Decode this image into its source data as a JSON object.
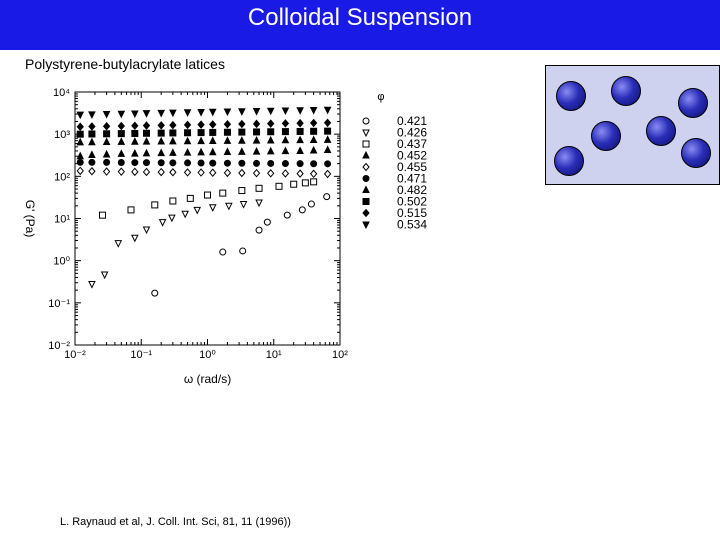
{
  "header": {
    "title": "Colloidal Suspension"
  },
  "subtitle": "Polystyrene-butylacrylate latices",
  "citation": "L. Raynaud et al, J. Coll. Int. Sci, 81, 11 (1996))",
  "colors": {
    "title_bar": "#1a1ae6",
    "title_text": "#ffffff",
    "particle_box": "#cfd2ee",
    "particle": "#2a2eb8"
  },
  "chart_data": {
    "type": "scatter",
    "xlabel": "ω (rad/s)",
    "ylabel": "G' (Pa)",
    "x_scale": "log",
    "y_scale": "log",
    "xlim": [
      0.01,
      100
    ],
    "ylim": [
      0.01,
      10000
    ],
    "x_tick_labels": [
      "10⁻²",
      "10⁻¹",
      "10⁰",
      "10¹",
      "10²"
    ],
    "y_tick_labels": [
      "10⁴",
      "10³",
      "10²",
      "10¹",
      "10⁰",
      "10⁻¹",
      "10⁻²"
    ],
    "legend_title": "φ",
    "legend_position": "right",
    "grid": false,
    "series": [
      {
        "name": "0.421",
        "marker": "circle-open",
        "x": [
          0.16,
          1.7,
          3.4,
          6.0,
          8.0,
          16,
          27,
          37,
          63
        ],
        "y": [
          0.17,
          1.6,
          1.7,
          5.3,
          8.2,
          12,
          16,
          22,
          33
        ]
      },
      {
        "name": "0.426",
        "marker": "triangle-down-open",
        "x": [
          0.018,
          0.028,
          0.045,
          0.08,
          0.12,
          0.21,
          0.29,
          0.46,
          0.7,
          1.2,
          2.1,
          3.5,
          6.0
        ],
        "y": [
          0.28,
          0.47,
          2.6,
          3.5,
          5.5,
          8.2,
          10.5,
          13,
          16,
          18.5,
          20,
          22,
          24
        ]
      },
      {
        "name": "0.437",
        "marker": "square-open",
        "x": [
          0.026,
          0.07,
          0.16,
          0.3,
          0.55,
          1.0,
          1.7,
          3.3,
          6.0,
          12,
          20,
          30,
          40
        ],
        "y": [
          12,
          16,
          21,
          26,
          30,
          36,
          40,
          46,
          52,
          58,
          65,
          70,
          74
        ]
      },
      {
        "name": "0.452",
        "marker": "triangle-up-filled",
        "x": [
          0.012,
          0.018,
          0.03,
          0.05,
          0.08,
          0.12,
          0.2,
          0.3,
          0.5,
          0.8,
          1.2,
          2.0,
          3.3,
          5.5,
          9,
          15,
          25,
          40,
          65
        ],
        "y": [
          300,
          320,
          330,
          340,
          345,
          350,
          355,
          360,
          365,
          370,
          372,
          378,
          380,
          385,
          390,
          395,
          400,
          410,
          420
        ]
      },
      {
        "name": "0.455",
        "marker": "diamond-open",
        "x": [
          0.012,
          0.018,
          0.03,
          0.05,
          0.08,
          0.12,
          0.2,
          0.3,
          0.5,
          0.8,
          1.2,
          2.0,
          3.3,
          5.5,
          9,
          15,
          25,
          40,
          65
        ],
        "y": [
          135,
          132,
          130,
          129,
          128,
          127,
          126,
          125,
          124,
          123,
          122,
          121,
          120,
          119,
          118,
          117,
          116,
          115,
          114
        ]
      },
      {
        "name": "0.471",
        "marker": "circle-filled",
        "x": [
          0.012,
          0.018,
          0.03,
          0.05,
          0.08,
          0.12,
          0.2,
          0.3,
          0.5,
          0.8,
          1.2,
          2.0,
          3.3,
          5.5,
          9,
          15,
          25,
          40,
          65
        ],
        "y": [
          215,
          215,
          214,
          213,
          212,
          211,
          210,
          209,
          208,
          207,
          206,
          205,
          204,
          203,
          202,
          201,
          200,
          199,
          198
        ]
      },
      {
        "name": "0.482",
        "marker": "triangle-up-filled",
        "x": [
          0.012,
          0.018,
          0.03,
          0.05,
          0.08,
          0.12,
          0.2,
          0.3,
          0.5,
          0.8,
          1.2,
          2.0,
          3.3,
          5.5,
          9,
          15,
          25,
          40,
          65
        ],
        "y": [
          640,
          645,
          650,
          655,
          660,
          665,
          670,
          675,
          680,
          685,
          690,
          695,
          700,
          705,
          710,
          715,
          720,
          725,
          730
        ]
      },
      {
        "name": "0.502",
        "marker": "square-filled",
        "x": [
          0.012,
          0.018,
          0.03,
          0.05,
          0.08,
          0.12,
          0.2,
          0.3,
          0.5,
          0.8,
          1.2,
          2.0,
          3.3,
          5.5,
          9,
          15,
          25,
          40,
          65
        ],
        "y": [
          1000,
          1010,
          1020,
          1030,
          1040,
          1050,
          1060,
          1070,
          1080,
          1090,
          1100,
          1110,
          1120,
          1130,
          1140,
          1150,
          1160,
          1170,
          1180
        ]
      },
      {
        "name": "0.515",
        "marker": "diamond-filled",
        "x": [
          0.012,
          0.018,
          0.03,
          0.05,
          0.08,
          0.12,
          0.2,
          0.3,
          0.5,
          0.8,
          1.2,
          2.0,
          3.3,
          5.5,
          9,
          15,
          25,
          40,
          65
        ],
        "y": [
          1500,
          1520,
          1540,
          1560,
          1580,
          1600,
          1620,
          1640,
          1660,
          1680,
          1700,
          1720,
          1740,
          1760,
          1780,
          1800,
          1820,
          1840,
          1860
        ]
      },
      {
        "name": "0.534",
        "marker": "triangle-down-filled",
        "x": [
          0.012,
          0.018,
          0.03,
          0.05,
          0.08,
          0.12,
          0.2,
          0.3,
          0.5,
          0.8,
          1.2,
          2.0,
          3.3,
          5.5,
          9,
          15,
          25,
          40,
          65
        ],
        "y": [
          2900,
          2950,
          3000,
          3050,
          3100,
          3150,
          3200,
          3250,
          3300,
          3350,
          3400,
          3450,
          3500,
          3550,
          3600,
          3650,
          3700,
          3750,
          3800
        ]
      }
    ]
  }
}
